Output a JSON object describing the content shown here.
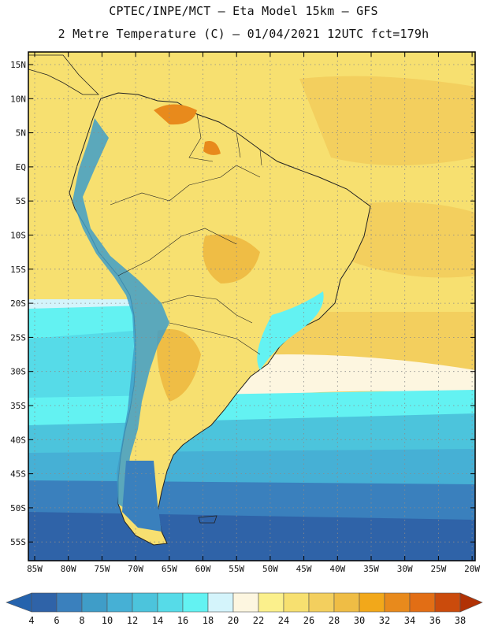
{
  "header": {
    "line1": "CPTEC/INPE/MCT –  Eta Model 15km – GFS",
    "line2": "2 Metre Temperature (C) – 01/04/2021 12UTC fct=179h"
  },
  "axes": {
    "lat_labels": [
      "15N",
      "10N",
      "5N",
      "EQ",
      "5S",
      "10S",
      "15S",
      "20S",
      "25S",
      "30S",
      "35S",
      "40S",
      "45S",
      "50S",
      "55S"
    ],
    "lon_labels": [
      "85W",
      "80W",
      "75W",
      "70W",
      "65W",
      "60W",
      "55W",
      "50W",
      "45W",
      "40W",
      "35W",
      "30W",
      "25W",
      "20W"
    ]
  },
  "colorbar": {
    "labels": [
      "4",
      "6",
      "8",
      "10",
      "12",
      "14",
      "16",
      "18",
      "20",
      "22",
      "24",
      "26",
      "28",
      "30",
      "32",
      "34",
      "36",
      "38"
    ],
    "colors": [
      "#2f63a8",
      "#3a80bd",
      "#3f9dc8",
      "#46b0d5",
      "#4cc4dc",
      "#56dbe8",
      "#63f2f2",
      "#d4f4fb",
      "#fdf6e0",
      "#fbf08c",
      "#f7e070",
      "#f3cf5e",
      "#efbd45",
      "#f2a81a",
      "#e88a1c",
      "#e26e15",
      "#cb4b0c",
      "#b13205"
    ],
    "under_color": "#2563ad",
    "over_color": "#b13205"
  },
  "map_colors": {
    "ocean_cold": "#2f63a8",
    "ocean_cool": "#3f9dc8",
    "ocean_mid": "#4cc4dc",
    "ocean_light": "#63f2f2",
    "ocean_pale": "#d4f4fb",
    "ocean_warm": "#f3cf5e",
    "ocean_warmer": "#efbd45",
    "land_base": "#f7e070",
    "land_hot": "#efbd45",
    "land_hotter": "#e88a1c",
    "andes": "#3f9dc8"
  }
}
